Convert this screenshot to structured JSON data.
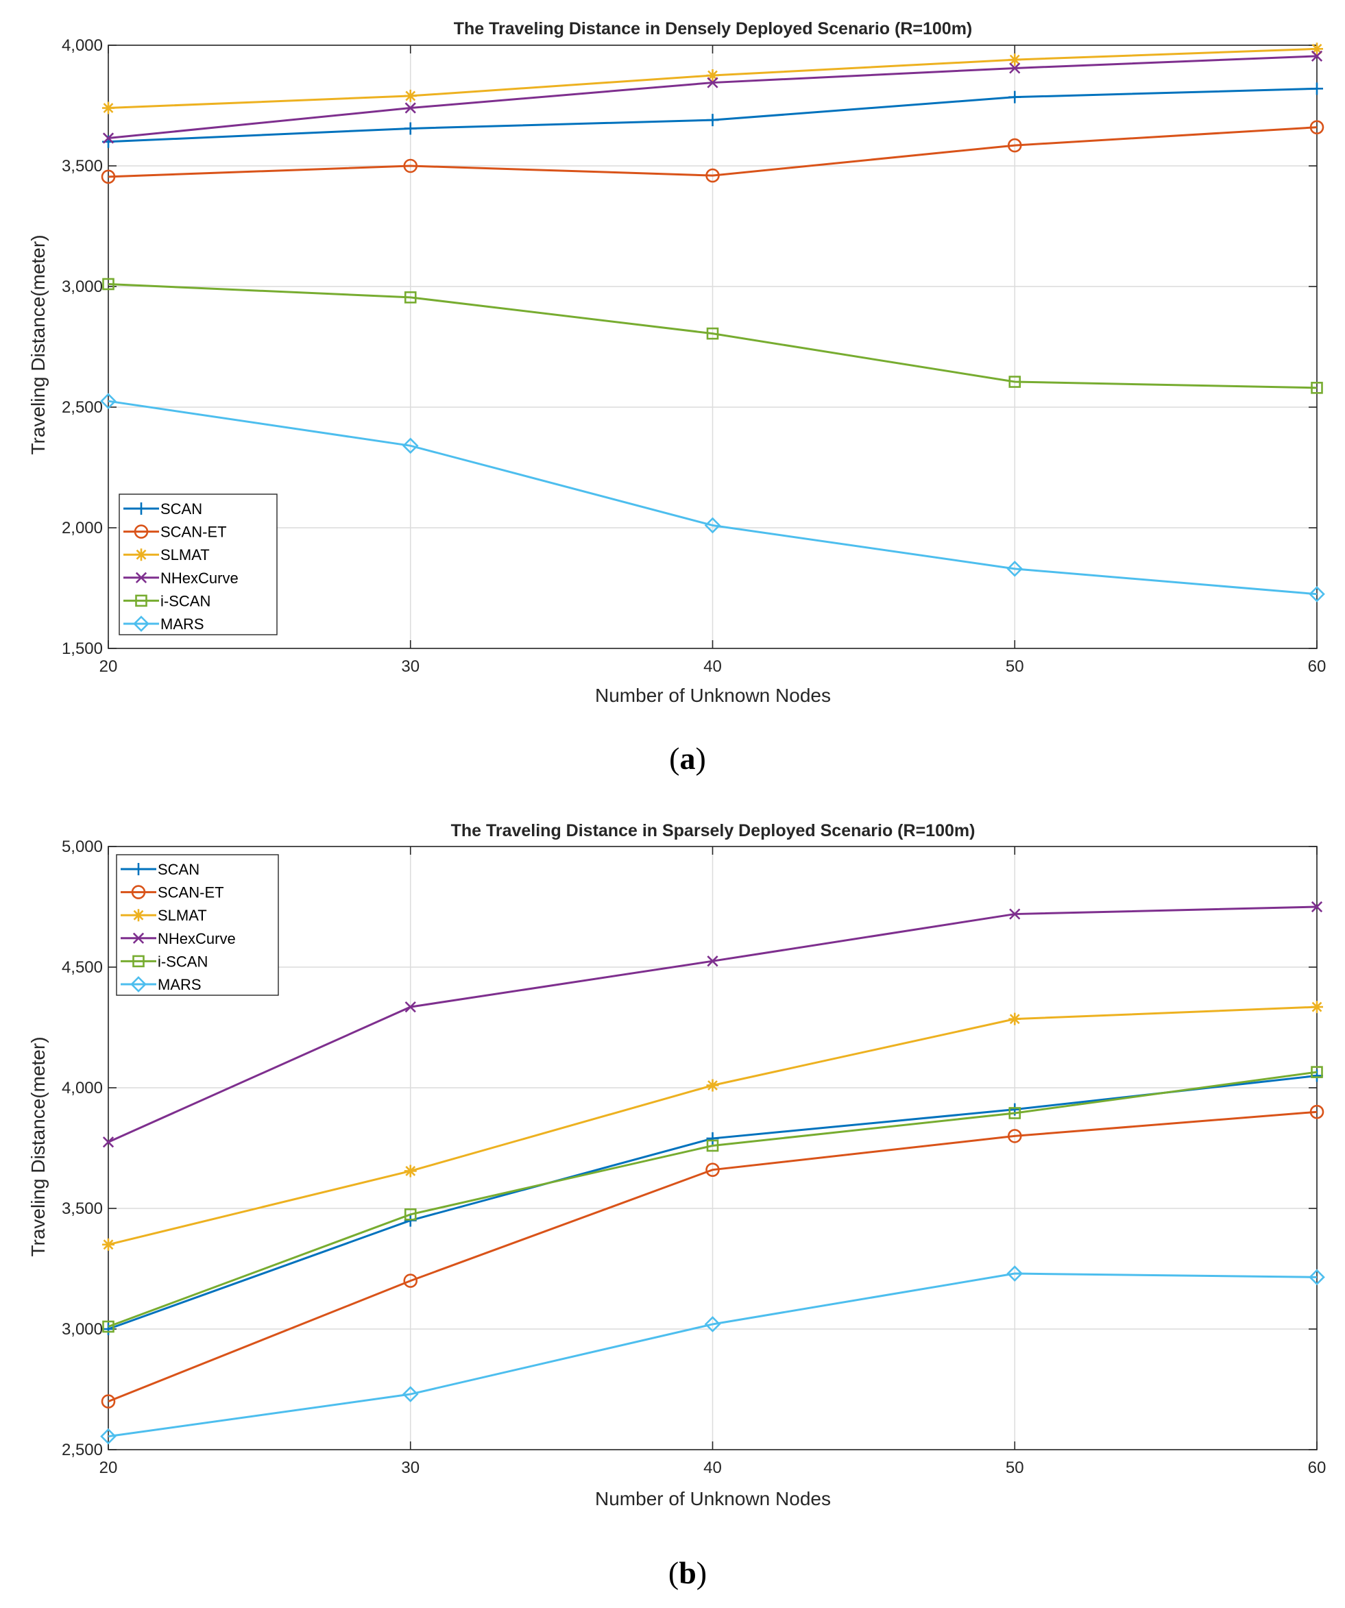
{
  "colors": {
    "SCAN": "#0072BD",
    "SCAN-ET": "#D95319",
    "SLMAT": "#EDB120",
    "NHexCurve": "#7E2F8E",
    "i-SCAN": "#77AC30",
    "MARS": "#4DBEEE",
    "grid": "#dcdcdc",
    "axis": "#262626"
  },
  "captions": [
    {
      "open": "(",
      "letter": "a",
      "close": ")"
    },
    {
      "open": "(",
      "letter": "b",
      "close": ")"
    }
  ],
  "chart_data": [
    {
      "type": "line",
      "title": "The Traveling Distance in Densely Deployed Scenario (R=100m)",
      "xlabel": "Number of Unknown Nodes",
      "ylabel": "Traveling Distance(meter)",
      "x": [
        20,
        30,
        40,
        50,
        60
      ],
      "xticks": [
        "20",
        "30",
        "40",
        "50",
        "60"
      ],
      "xlim": [
        20,
        60
      ],
      "ylim": [
        1500,
        4000
      ],
      "yticks": [
        1500,
        2000,
        2500,
        3000,
        3500,
        4000
      ],
      "ytick_labels": [
        "1,500",
        "2,000",
        "2,500",
        "3,000",
        "3,500",
        "4,000"
      ],
      "grid": true,
      "legend_position": "bottom-left",
      "series": [
        {
          "name": "SCAN",
          "marker": "plus",
          "values": [
            3600,
            3655,
            3690,
            3785,
            3820
          ]
        },
        {
          "name": "SCAN-ET",
          "marker": "circle",
          "values": [
            3455,
            3500,
            3460,
            3585,
            3660
          ]
        },
        {
          "name": "SLMAT",
          "marker": "asterisk",
          "values": [
            3740,
            3790,
            3875,
            3940,
            3985
          ]
        },
        {
          "name": "NHexCurve",
          "marker": "x",
          "values": [
            3615,
            3740,
            3845,
            3905,
            3955
          ]
        },
        {
          "name": "i-SCAN",
          "marker": "square",
          "values": [
            3010,
            2955,
            2805,
            2605,
            2580
          ]
        },
        {
          "name": "MARS",
          "marker": "diamond",
          "values": [
            2525,
            2340,
            2010,
            1830,
            1725
          ]
        }
      ]
    },
    {
      "type": "line",
      "title": "The Traveling Distance in Sparsely Deployed Scenario (R=100m)",
      "xlabel": "Number of Unknown Nodes",
      "ylabel": "Traveling Distance(meter)",
      "x": [
        20,
        30,
        40,
        50,
        60
      ],
      "xticks": [
        "20",
        "30",
        "40",
        "50",
        "60"
      ],
      "xlim": [
        20,
        60
      ],
      "ylim": [
        2500,
        5000
      ],
      "yticks": [
        2500,
        3000,
        3500,
        4000,
        4500,
        5000
      ],
      "ytick_labels": [
        "2,500",
        "3,000",
        "3,500",
        "4,000",
        "4,500",
        "5,000"
      ],
      "grid": true,
      "legend_position": "top-left",
      "series": [
        {
          "name": "SCAN",
          "marker": "plus",
          "values": [
            3000,
            3450,
            3790,
            3910,
            4050
          ]
        },
        {
          "name": "SCAN-ET",
          "marker": "circle",
          "values": [
            2700,
            3200,
            3660,
            3800,
            3900
          ]
        },
        {
          "name": "SLMAT",
          "marker": "asterisk",
          "values": [
            3350,
            3655,
            4010,
            4285,
            4335
          ]
        },
        {
          "name": "NHexCurve",
          "marker": "x",
          "values": [
            3775,
            4335,
            4525,
            4720,
            4750
          ]
        },
        {
          "name": "i-SCAN",
          "marker": "square",
          "values": [
            3010,
            3475,
            3760,
            3895,
            4065
          ]
        },
        {
          "name": "MARS",
          "marker": "diamond",
          "values": [
            2555,
            2730,
            3020,
            3230,
            3215
          ]
        }
      ]
    }
  ]
}
